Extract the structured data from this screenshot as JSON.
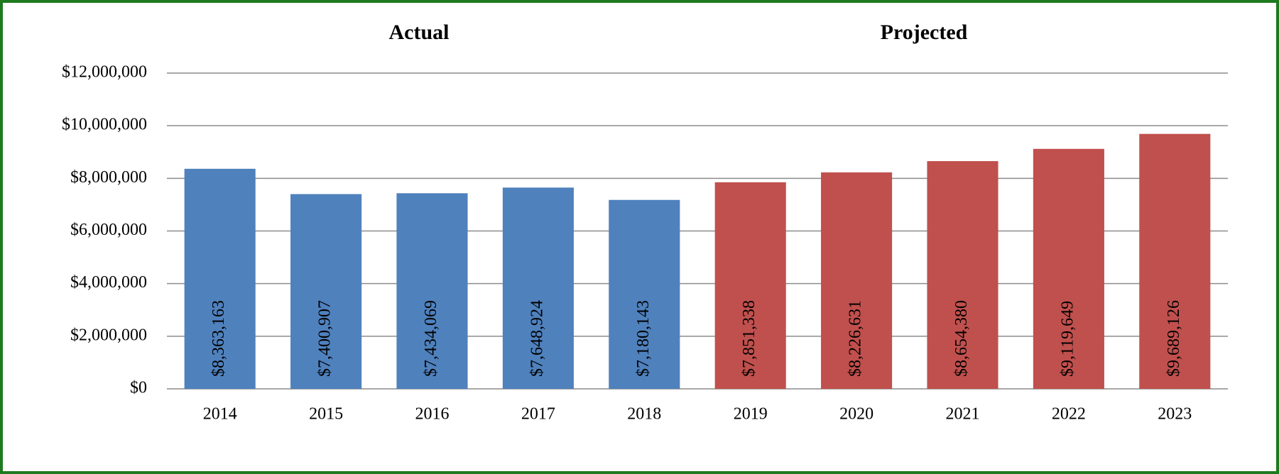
{
  "chart_data": {
    "type": "bar",
    "annotations": [
      {
        "text": "Actual",
        "color": "#558ed5"
      },
      {
        "text": "Projected",
        "color": "#000000"
      }
    ],
    "categories": [
      "2014",
      "2015",
      "2016",
      "2017",
      "2018",
      "2019",
      "2020",
      "2021",
      "2022",
      "2023"
    ],
    "values": [
      8363163,
      7400907,
      7434069,
      7648924,
      7180143,
      7851338,
      8226631,
      8654380,
      9119649,
      9689126
    ],
    "value_labels": [
      "$8,363,163",
      "$7,400,907",
      "$7,434,069",
      "$7,648,924",
      "$7,180,143",
      "$7,851,338",
      "$8,226,631",
      "$8,654,380",
      "$9,119,649",
      "$9,689,126"
    ],
    "colors": [
      "#4f81bd",
      "#4f81bd",
      "#4f81bd",
      "#4f81bd",
      "#4f81bd",
      "#c0504d",
      "#c0504d",
      "#c0504d",
      "#c0504d",
      "#c0504d"
    ],
    "ylim": [
      0,
      12000000
    ],
    "yticks": [
      {
        "value": 0,
        "label": "$0"
      },
      {
        "value": 2000000,
        "label": "$2,000,000"
      },
      {
        "value": 4000000,
        "label": "$4,000,000"
      },
      {
        "value": 6000000,
        "label": "$6,000,000"
      },
      {
        "value": 8000000,
        "label": "$8,000,000"
      },
      {
        "value": 10000000,
        "label": "$10,000,000"
      },
      {
        "value": 12000000,
        "label": "$12,000,000"
      }
    ],
    "grid": true
  }
}
